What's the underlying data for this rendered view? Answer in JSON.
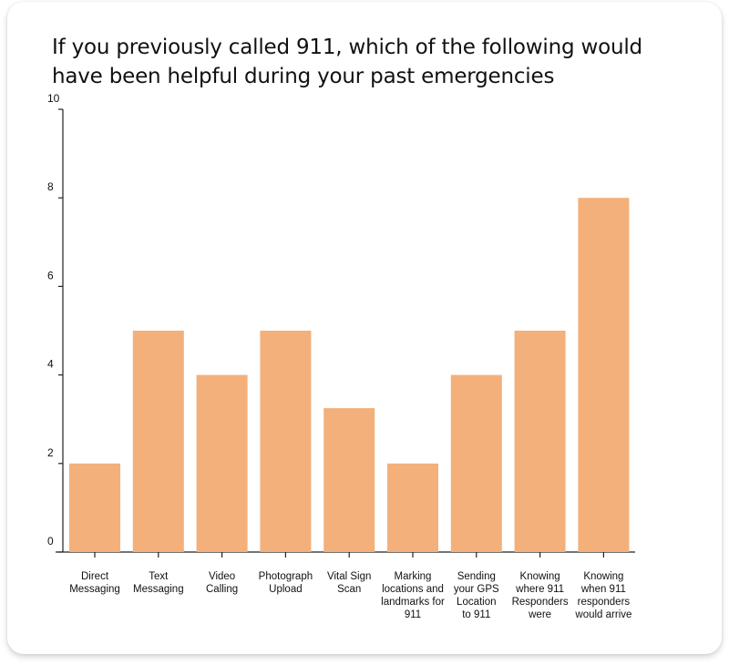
{
  "chart_data": {
    "type": "bar",
    "title": "If you previously called 911, which of the following would have been helpful during your past emergencies",
    "categories": [
      [
        "Direct",
        "Messaging"
      ],
      [
        "Text",
        "Messaging"
      ],
      [
        "Video",
        "Calling"
      ],
      [
        "Photograph",
        "Upload"
      ],
      [
        "Vital Sign",
        "Scan"
      ],
      [
        "Marking",
        "locations and",
        "landmarks for",
        "911"
      ],
      [
        "Sending",
        "your GPS",
        "Location",
        "to 911"
      ],
      [
        "Knowing",
        "where 911",
        "Responders",
        "were"
      ],
      [
        "Knowing",
        "when 911",
        "responders",
        "would arrive"
      ]
    ],
    "values": [
      2,
      5,
      4,
      5,
      3.25,
      2,
      4,
      5,
      8
    ],
    "yticks": [
      "0",
      "2",
      "4",
      "6",
      "8",
      "10"
    ],
    "ylim": [
      0,
      10
    ],
    "xlabel": "",
    "ylabel": "",
    "grid": false,
    "bar_color": "#F3B07A",
    "axis_color": "#222222"
  }
}
